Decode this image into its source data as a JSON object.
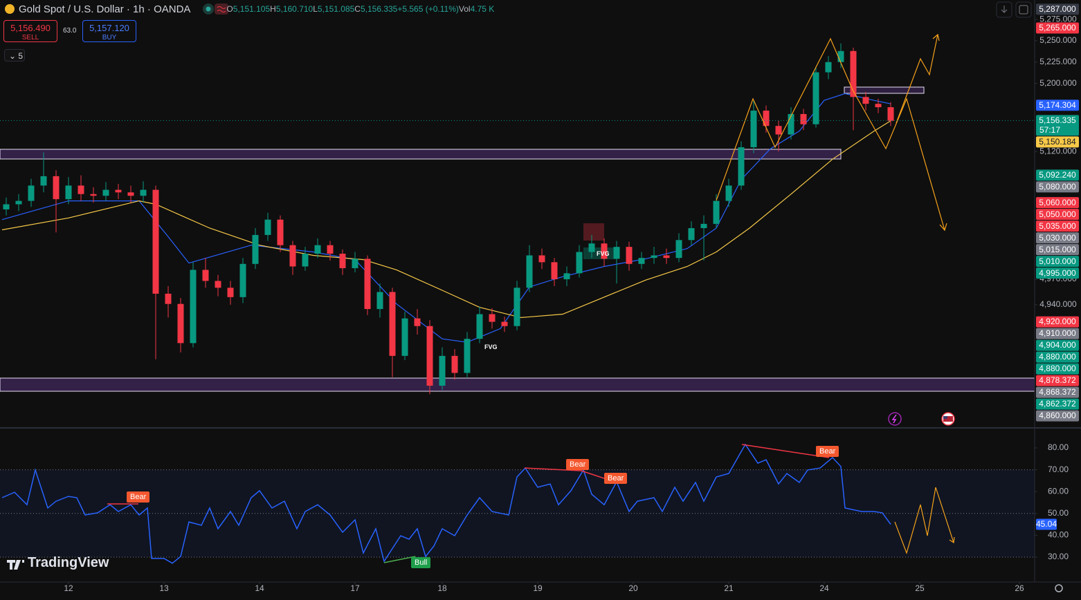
{
  "header": {
    "symbol": "Gold Spot / U.S. Dollar · 1h · OANDA",
    "ohlc": [
      {
        "key": "O",
        "value": "5,151.105"
      },
      {
        "key": "H",
        "value": "5,160.710"
      },
      {
        "key": "L",
        "value": "5,151.085"
      },
      {
        "key": "C",
        "value": "5,156.335"
      }
    ],
    "change": "+5.565 (+0.11%)",
    "vol_key": "Vol",
    "vol": "4.75 K"
  },
  "trade": {
    "sell_price": "5,156.490",
    "sell_label": "SELL",
    "spread": "63.0",
    "buy_price": "5,157.120",
    "buy_label": "BUY"
  },
  "interval_badge": "5",
  "brand": "TradingView",
  "annotations": {
    "fvg": [
      "FVG",
      "FVG"
    ],
    "divergence": [
      "Bear",
      "Bear",
      "Bear",
      "Bear",
      "Bull"
    ]
  },
  "chart_data": [
    {
      "type": "candlestick",
      "colors": {
        "up": "#089981",
        "down": "#f23645"
      },
      "x": [
        1,
        4,
        7,
        10,
        13,
        16,
        19,
        22,
        25,
        28,
        31,
        34,
        37,
        40,
        43,
        46,
        49,
        52,
        55,
        58,
        61,
        64,
        67,
        70,
        73,
        76,
        79,
        82,
        85,
        88,
        91,
        94,
        97,
        100,
        103,
        106,
        109,
        112,
        115,
        118,
        121,
        124,
        127,
        130,
        133,
        136,
        139,
        142,
        145,
        148,
        151,
        154,
        157,
        160,
        163,
        166,
        169,
        172,
        175,
        178,
        181,
        184,
        187,
        190,
        193,
        196,
        199,
        202,
        205,
        208,
        211,
        214
      ],
      "open": [
        5052,
        5058,
        5062,
        5080,
        5091,
        5064,
        5080,
        5070,
        5068,
        5075,
        5072,
        5068,
        5075,
        4953,
        4941,
        4895,
        4981,
        4968,
        4960,
        4949,
        4988,
        5022,
        5040,
        5010,
        4985,
        5000,
        5010,
        5000,
        4983,
        4994,
        4935,
        4955,
        4880,
        4924,
        4915,
        4845,
        4880,
        4860,
        4900,
        4929,
        4920,
        4915,
        4960,
        4998,
        4990,
        4970,
        4977,
        5002,
        5012,
        4994,
        5008,
        4988,
        4995,
        4998,
        4995,
        5016,
        5030,
        5035,
        5062,
        5080,
        5125,
        5168,
        5150,
        5140,
        5164,
        5152,
        5213,
        5225,
        5238,
        5184,
        5176,
        5172
      ],
      "high": [
        5066,
        5070,
        5088,
        5119,
        5098,
        5090,
        5092,
        5078,
        5084,
        5082,
        5080,
        5085,
        5080,
        4962,
        4948,
        4990,
        4995,
        4975,
        4968,
        4995,
        5030,
        5048,
        5045,
        5015,
        5008,
        5018,
        5015,
        5005,
        5002,
        4998,
        4965,
        4960,
        4932,
        4935,
        4922,
        4890,
        4888,
        4908,
        4938,
        4936,
        4926,
        4968,
        5010,
        5006,
        4995,
        4985,
        5010,
        5022,
        5018,
        5015,
        5014,
        5002,
        5008,
        5006,
        5024,
        5038,
        5045,
        5070,
        5088,
        5132,
        5180,
        5174,
        5156,
        5172,
        5170,
        5220,
        5232,
        5247,
        5242,
        5190,
        5182,
        5178
      ],
      "low": [
        5045,
        5050,
        5055,
        5072,
        5025,
        5058,
        5062,
        5060,
        5062,
        5064,
        5060,
        5060,
        4876,
        4925,
        4884,
        4890,
        4960,
        4950,
        4940,
        4942,
        4982,
        5015,
        5002,
        4975,
        4980,
        4995,
        4992,
        4975,
        4978,
        4928,
        4925,
        4855,
        4875,
        4905,
        4835,
        4840,
        4852,
        4855,
        4895,
        4912,
        4908,
        4910,
        4955,
        4982,
        4962,
        4962,
        4972,
        4995,
        4985,
        4965,
        4980,
        4982,
        4988,
        4988,
        4990,
        5010,
        4992,
        5030,
        5055,
        5075,
        5118,
        5142,
        5120,
        5134,
        5145,
        5148,
        5205,
        5218,
        5145,
        5168,
        5165,
        5150
      ],
      "close": [
        5058,
        5062,
        5080,
        5091,
        5064,
        5080,
        5070,
        5068,
        5075,
        5072,
        5068,
        5075,
        4953,
        4941,
        4895,
        4981,
        4968,
        4960,
        4949,
        4988,
        5022,
        5040,
        5010,
        4985,
        5000,
        5010,
        5000,
        4983,
        4994,
        4935,
        4955,
        4880,
        4924,
        4915,
        4845,
        4880,
        4860,
        4900,
        4929,
        4920,
        4915,
        4960,
        4998,
        4990,
        4970,
        4977,
        5002,
        5012,
        4994,
        5008,
        4988,
        4995,
        4998,
        4995,
        5016,
        5030,
        5035,
        5062,
        5080,
        5125,
        5168,
        5150,
        5140,
        5164,
        5152,
        5213,
        5225,
        5238,
        5184,
        5176,
        5172,
        5156
      ],
      "lines": [
        {
          "color": "#2962ff",
          "x": [
            0,
            16,
            33,
            40,
            45,
            60,
            75,
            85,
            95,
            106,
            112,
            120,
            127,
            135,
            145,
            155,
            165,
            172,
            178,
            185,
            192,
            198,
            203,
            210,
            214
          ],
          "values": [
            5040,
            5062,
            5062,
            5020,
            4989,
            5010,
            5002,
            4993,
            4941,
            4900,
            4896,
            4912,
            4961,
            4973,
            4985,
            4994,
            5006,
            5030,
            5087,
            5123,
            5144,
            5180,
            5188,
            5180,
            5176
          ]
        },
        {
          "color": "#f7c948",
          "x": [
            0,
            16,
            33,
            37,
            50,
            62,
            75,
            87,
            95,
            106,
            115,
            125,
            135,
            145,
            155,
            165,
            172,
            180,
            190,
            200,
            210,
            214
          ],
          "values": [
            5028,
            5042,
            5062,
            5058,
            5030,
            5010,
            4998,
            4993,
            4981,
            4957,
            4937,
            4925,
            4929,
            4949,
            4969,
            4985,
            5002,
            5030,
            5070,
            5111,
            5144,
            5156
          ]
        }
      ],
      "xlim": [
        -0.5,
        248.5
      ],
      "xticks": [
        {
          "value": 16,
          "label": "12"
        },
        {
          "value": 39,
          "label": "13"
        },
        {
          "value": 62,
          "label": "14"
        },
        {
          "value": 85,
          "label": "17"
        },
        {
          "value": 106,
          "label": "18"
        },
        {
          "value": 129,
          "label": "19"
        },
        {
          "value": 152,
          "label": "20"
        },
        {
          "value": 175,
          "label": "21"
        },
        {
          "value": 198,
          "label": "24"
        },
        {
          "value": 221,
          "label": "25"
        },
        {
          "value": 245,
          "label": "26"
        }
      ],
      "ylim": [
        4796.27,
        5297.89
      ],
      "yticks": [
        {
          "value": 5275,
          "label": "5,275.000"
        },
        {
          "value": 5250,
          "label": "5,250.000"
        },
        {
          "value": 5225,
          "label": "5,225.000"
        },
        {
          "value": 5200,
          "label": "5,200.000"
        },
        {
          "value": 5120,
          "label": "5,120.000"
        },
        {
          "value": 4970,
          "label": "4,970.000"
        },
        {
          "value": 4940,
          "label": "4,940.000"
        }
      ],
      "price_badges": [
        {
          "value": 5287,
          "label": "5,287.000",
          "color": "#363a45"
        },
        {
          "value": 5265,
          "label": "5,265.000",
          "color": "#f23645"
        },
        {
          "value": 5174.304,
          "label": "5,174.304",
          "color": "#2962ff"
        },
        {
          "value": 5156.335,
          "label": "5,156.335",
          "color": "#089981",
          "countdown": "57:17",
          "dotted_line": true
        },
        {
          "value": 5150.184,
          "label": "5,150.184",
          "color": "#f7c948"
        },
        {
          "value": 5092.24,
          "label": "5,092.240",
          "color": "#089981"
        },
        {
          "value": 5080,
          "label": "5,080.000",
          "color": "#787b86"
        },
        {
          "value": 5060,
          "label": "5,060.000",
          "color": "#f23645"
        },
        {
          "value": 5050,
          "label": "5,050.000",
          "color": "#f23645"
        },
        {
          "value": 5035,
          "label": "5,035.000",
          "color": "#f23645"
        },
        {
          "value": 5030,
          "label": "5,030.000",
          "color": "#787b86"
        },
        {
          "value": 5015,
          "label": "5,015.000",
          "color": "#787b86"
        },
        {
          "value": 5010,
          "label": "5,010.000",
          "color": "#089981"
        },
        {
          "value": 4995,
          "label": "4,995.000",
          "color": "#089981"
        },
        {
          "value": 4920,
          "label": "4,920.000",
          "color": "#f23645"
        },
        {
          "value": 4910,
          "label": "4,910.000",
          "color": "#787b86"
        },
        {
          "value": 4904,
          "label": "4,904.000",
          "color": "#089981"
        },
        {
          "value": 4880,
          "label": "4,880.000",
          "color": "#089981"
        },
        {
          "value": 4880,
          "label": "4,880.000",
          "color": "#089981"
        },
        {
          "value": 4878.372,
          "label": "4,878.372",
          "color": "#f23645"
        },
        {
          "value": 4868.372,
          "label": "4,868.372",
          "color": "#787b86"
        },
        {
          "value": 4862.372,
          "label": "4,862.372",
          "color": "#089981"
        },
        {
          "value": 4860,
          "label": "4,860.000",
          "color": "#787b86"
        }
      ]
    },
    {
      "type": "line",
      "x": [
        0,
        3,
        6,
        8,
        11,
        13,
        16,
        18,
        20,
        23,
        26,
        28,
        31,
        33,
        35,
        36,
        39,
        41,
        43,
        45,
        48,
        50,
        52,
        55,
        57,
        60,
        62,
        65,
        68,
        71,
        73,
        76,
        79,
        82,
        85,
        87,
        90,
        92,
        96,
        98,
        100,
        102,
        104,
        106,
        109,
        112,
        115,
        118,
        122,
        124,
        126,
        129,
        132,
        134,
        137,
        140,
        142,
        145,
        148,
        151,
        153,
        157,
        159,
        162,
        164,
        167,
        169,
        172,
        175,
        179,
        182,
        184,
        187,
        189,
        192,
        194,
        197,
        200,
        202,
        203,
        207,
        210,
        212,
        214
      ],
      "series": [
        {
          "color": "#2962ff",
          "values": [
            57.2,
            59.7,
            54,
            69.9,
            52.5,
            55.6,
            57.8,
            57.2,
            49.3,
            50.3,
            54,
            50.9,
            54,
            49.3,
            52.5,
            29.4,
            29.4,
            27.2,
            30.3,
            46.1,
            44.6,
            52.5,
            43,
            50.9,
            44.6,
            57.2,
            60.4,
            52.5,
            55.6,
            43,
            50.9,
            54,
            49.3,
            41.4,
            47.1,
            31.9,
            43,
            28.1,
            39.8,
            38.2,
            43,
            30.3,
            35.1,
            43,
            39.8,
            49.3,
            57.2,
            50.9,
            49.3,
            66.7,
            70.8,
            62,
            63.5,
            54,
            60.4,
            69.9,
            58.8,
            54,
            64.5,
            50.9,
            55.6,
            57.2,
            50.9,
            62,
            55.6,
            64.2,
            55.6,
            66.7,
            68.3,
            81.6,
            73,
            74.6,
            63.5,
            68.3,
            64.2,
            69.9,
            70.8,
            75.6,
            71.5,
            52.5,
            50.9,
            50.9,
            50.3,
            45.04
          ]
        }
      ],
      "ylim": [
        19.24,
        88.86
      ],
      "yticks": [
        {
          "value": 80,
          "label": "80.00"
        },
        {
          "value": 70,
          "label": "70.00"
        },
        {
          "value": 60,
          "label": "60.00"
        },
        {
          "value": 50,
          "label": "50.00"
        },
        {
          "value": 40,
          "label": "40.00"
        },
        {
          "value": 30,
          "label": "30.00"
        }
      ],
      "band": [
        30,
        70
      ],
      "midline": 50,
      "last_value": 45.04,
      "last_color": "#2962ff"
    }
  ]
}
